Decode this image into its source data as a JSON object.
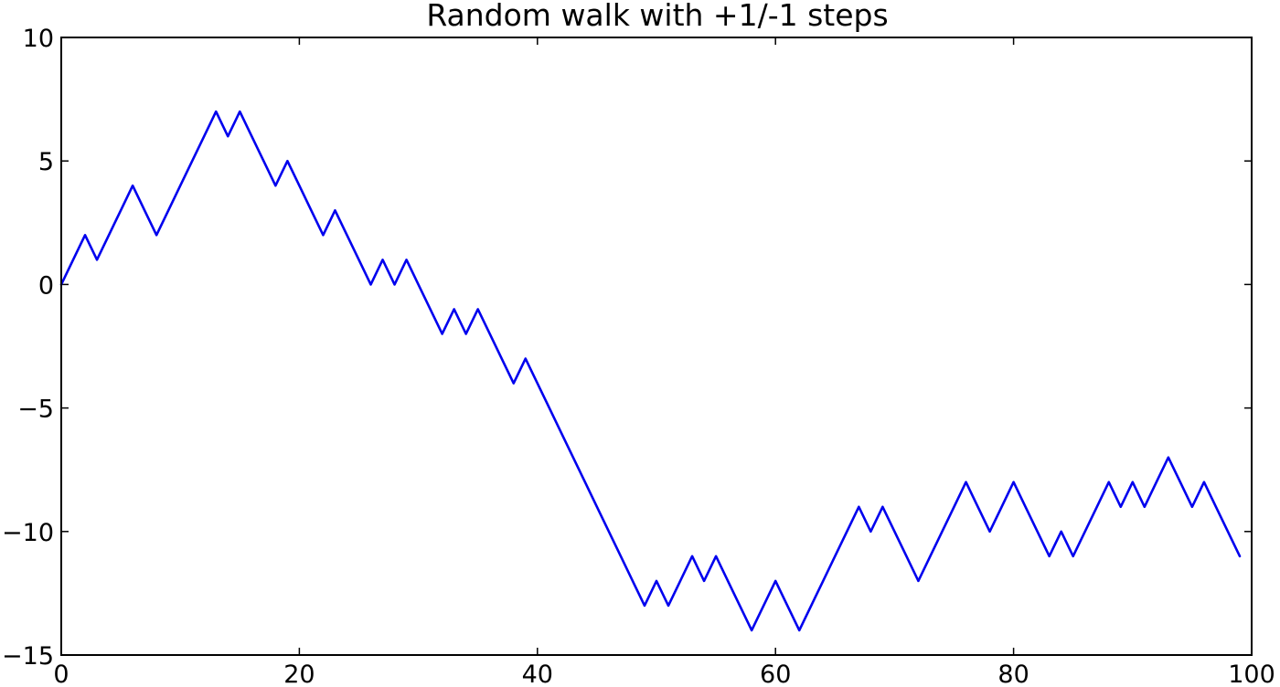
{
  "chart_data": {
    "type": "line",
    "title": "Random walk with +1/-1 steps",
    "xlabel": "",
    "ylabel": "",
    "xlim": [
      0,
      100
    ],
    "ylim": [
      -15,
      10
    ],
    "grid": false,
    "x_ticks": [
      0,
      20,
      40,
      60,
      80,
      100
    ],
    "x_tick_labels": [
      "0",
      "20",
      "40",
      "60",
      "80",
      "100"
    ],
    "y_ticks": [
      10,
      5,
      0,
      -5,
      -10,
      -15
    ],
    "y_tick_labels": [
      "10",
      "5",
      "0",
      "−5",
      "−10",
      "−15"
    ],
    "series": [
      {
        "color": "#0000ee",
        "x": [
          0,
          1,
          2,
          3,
          4,
          5,
          6,
          7,
          8,
          9,
          10,
          11,
          12,
          13,
          14,
          15,
          16,
          17,
          18,
          19,
          20,
          21,
          22,
          23,
          24,
          25,
          26,
          27,
          28,
          29,
          30,
          31,
          32,
          33,
          34,
          35,
          36,
          37,
          38,
          39,
          40,
          41,
          42,
          43,
          44,
          45,
          46,
          47,
          48,
          49,
          50,
          51,
          52,
          53,
          54,
          55,
          56,
          57,
          58,
          59,
          60,
          61,
          62,
          63,
          64,
          65,
          66,
          67,
          68,
          69,
          70,
          71,
          72,
          73,
          74,
          75,
          76,
          77,
          78,
          79,
          80,
          81,
          82,
          83,
          84,
          85,
          86,
          87,
          88,
          89,
          90,
          91,
          92,
          93,
          94,
          95,
          96,
          97,
          98,
          99
        ],
        "values": [
          0,
          1,
          2,
          1,
          2,
          3,
          4,
          3,
          2,
          3,
          4,
          5,
          6,
          7,
          6,
          7,
          6,
          5,
          4,
          5,
          4,
          3,
          2,
          3,
          2,
          1,
          0,
          1,
          0,
          1,
          0,
          -1,
          -2,
          -1,
          -2,
          -1,
          -2,
          -3,
          -4,
          -3,
          -4,
          -5,
          -6,
          -7,
          -8,
          -9,
          -10,
          -11,
          -12,
          -13,
          -12,
          -13,
          -12,
          -11,
          -12,
          -11,
          -12,
          -13,
          -14,
          -13,
          -12,
          -13,
          -14,
          -13,
          -12,
          -11,
          -10,
          -9,
          -10,
          -9,
          -10,
          -11,
          -12,
          -11,
          -10,
          -9,
          -8,
          -9,
          -10,
          -9,
          -8,
          -9,
          -10,
          -11,
          -10,
          -11,
          -10,
          -9,
          -8,
          -9,
          -8,
          -9,
          -8,
          -7,
          -8,
          -9,
          -8,
          -9,
          -10,
          -11
        ]
      }
    ]
  }
}
